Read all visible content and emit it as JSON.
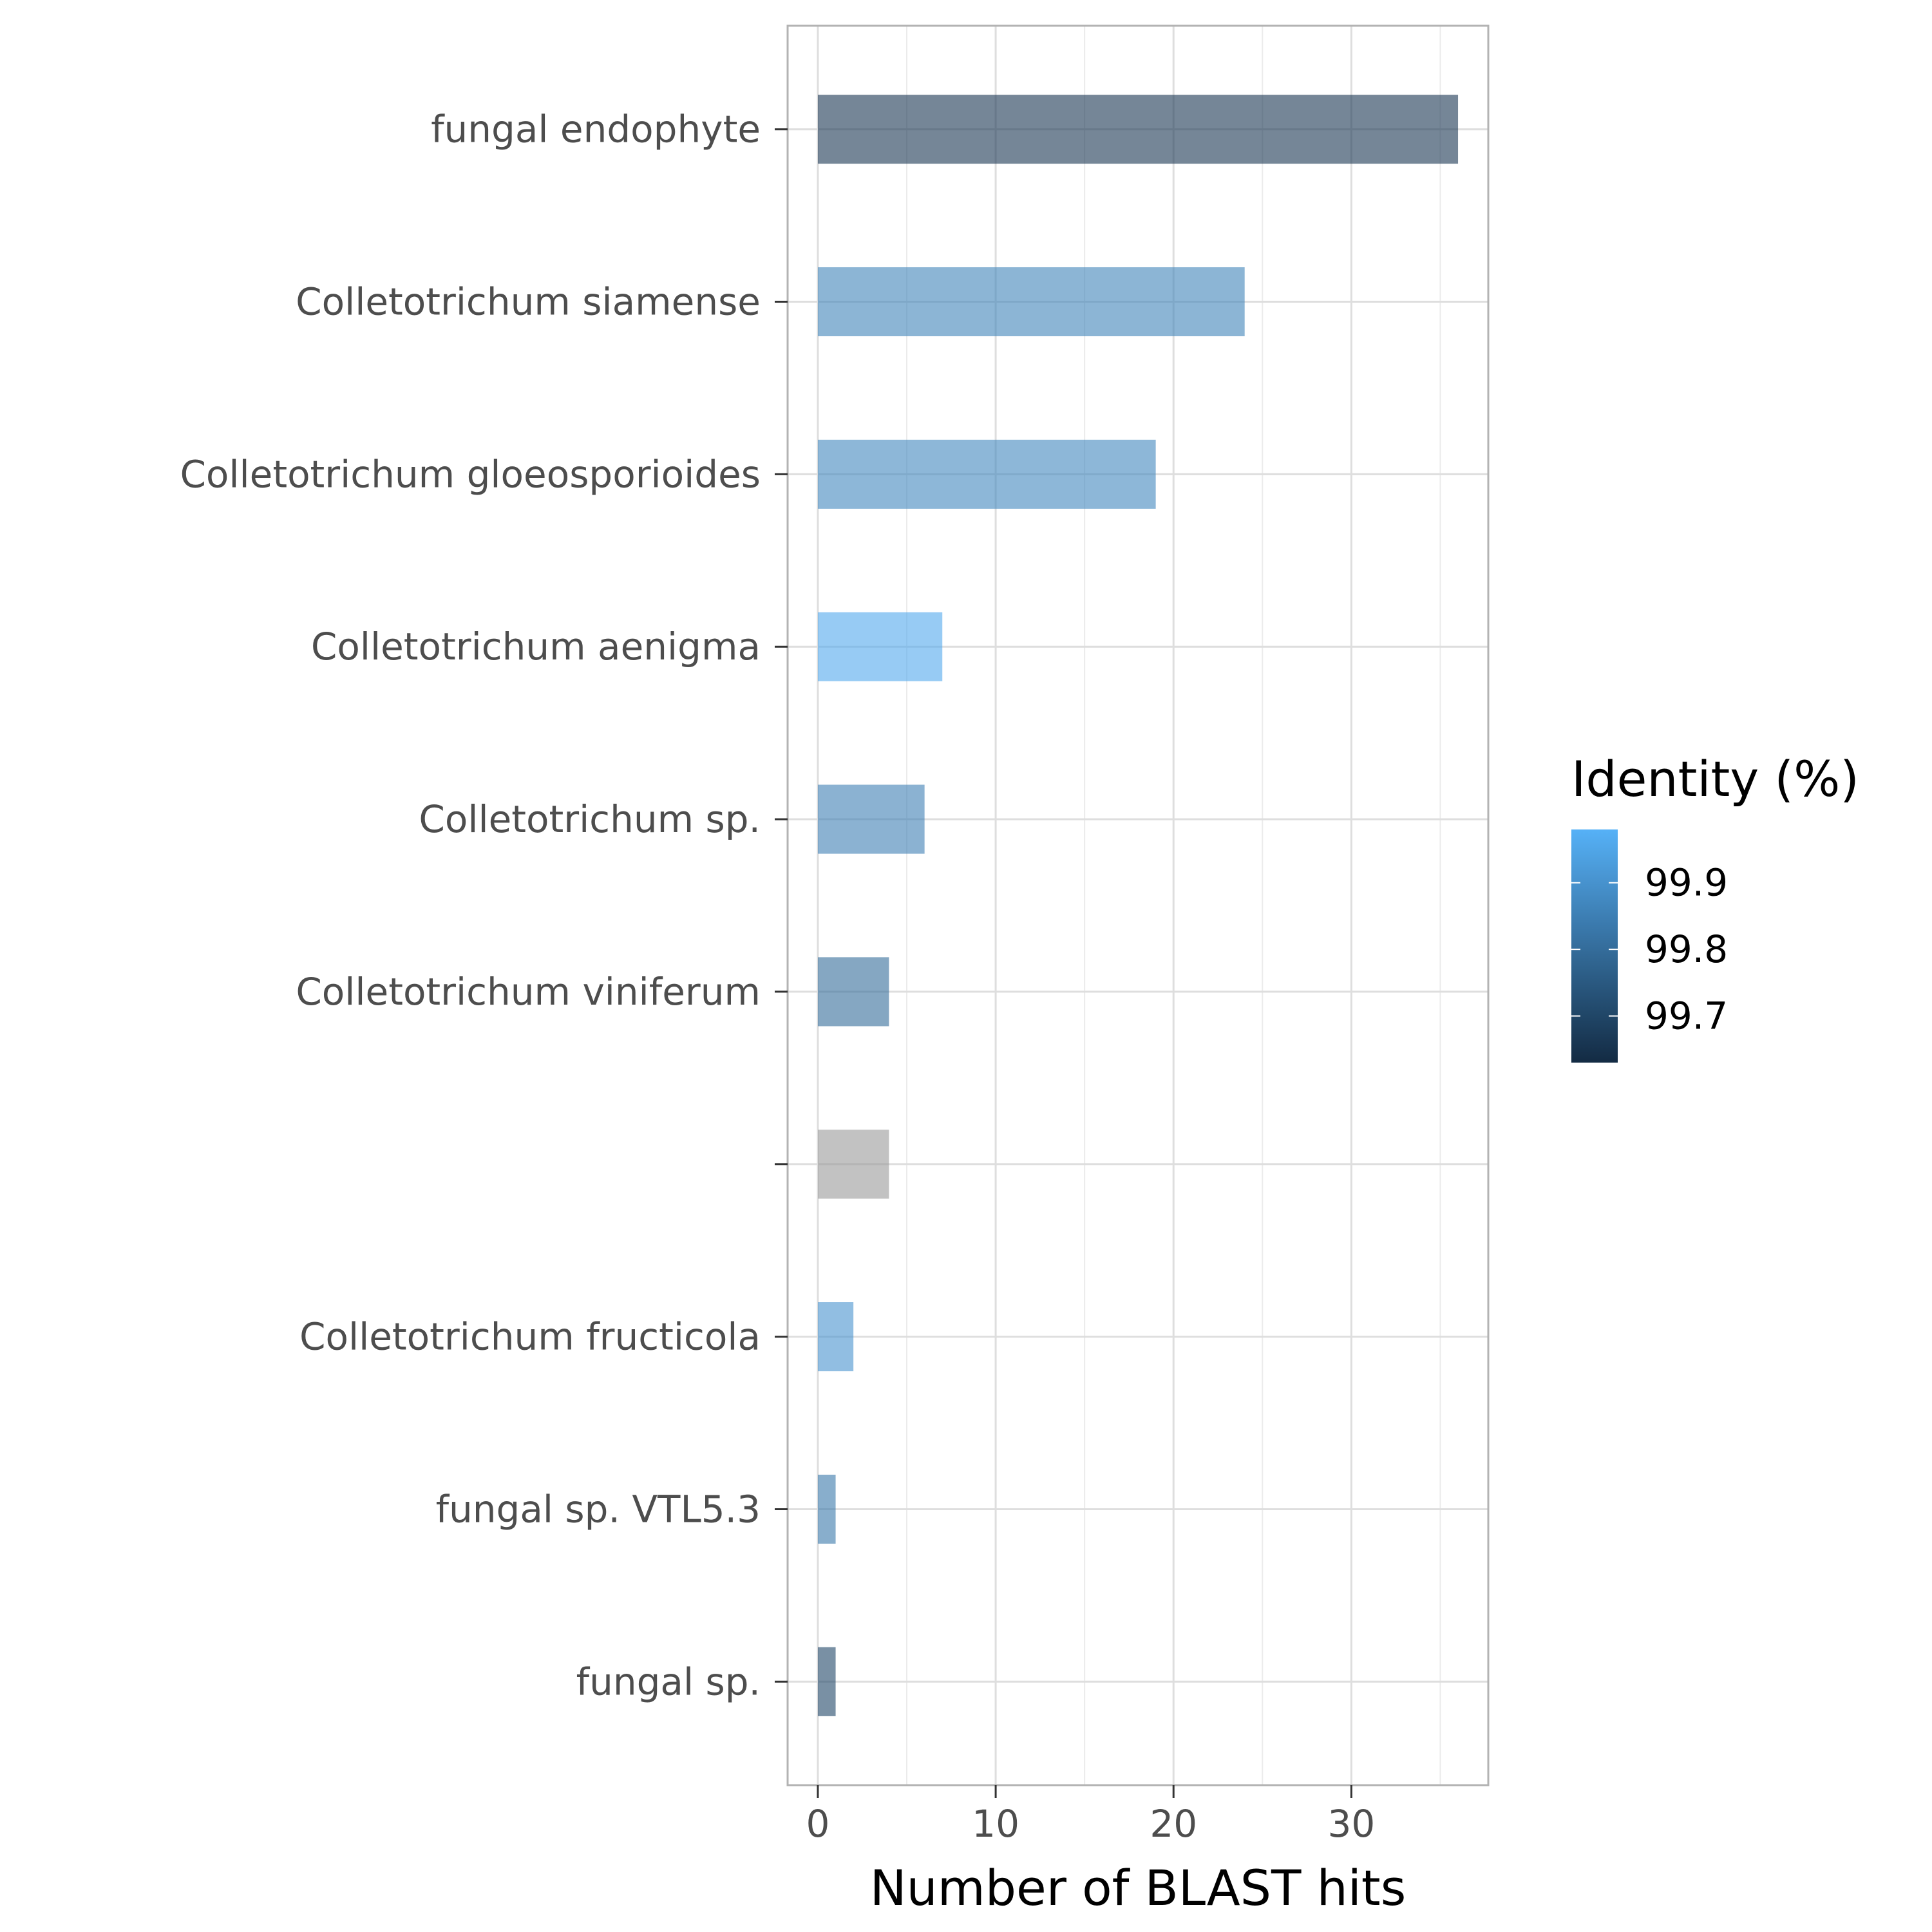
{
  "chart_data": {
    "type": "bar",
    "orientation": "horizontal",
    "categories": [
      "fungal endophyte",
      "Colletotrichum siamense",
      "Colletotrichum gloeosporioides",
      "Colletotrichum aenigma",
      "Colletotrichum sp.",
      "Colletotrichum viniferum",
      "",
      "Colletotrichum fructicola",
      "fungal sp. VTL5.3",
      "fungal sp."
    ],
    "values": [
      36,
      24,
      19,
      7,
      6,
      4,
      4,
      2,
      1,
      1
    ],
    "identity": [
      99.66,
      99.86,
      99.87,
      99.96,
      99.85,
      99.8,
      null,
      99.9,
      99.83,
      99.7
    ],
    "xlabel": "Number of BLAST hits",
    "ylabel": "",
    "xlim": [
      -1.7,
      37.7
    ],
    "xticks": [
      0,
      10,
      20,
      30
    ],
    "grid": true,
    "legend": {
      "title": "Identity (%)",
      "position": "right",
      "range": [
        99.63,
        99.98
      ],
      "ticks": [
        99.9,
        99.8,
        99.7
      ],
      "low_color": "#132b43",
      "high_color": "#56b1f7",
      "na_color": "#999999"
    }
  }
}
